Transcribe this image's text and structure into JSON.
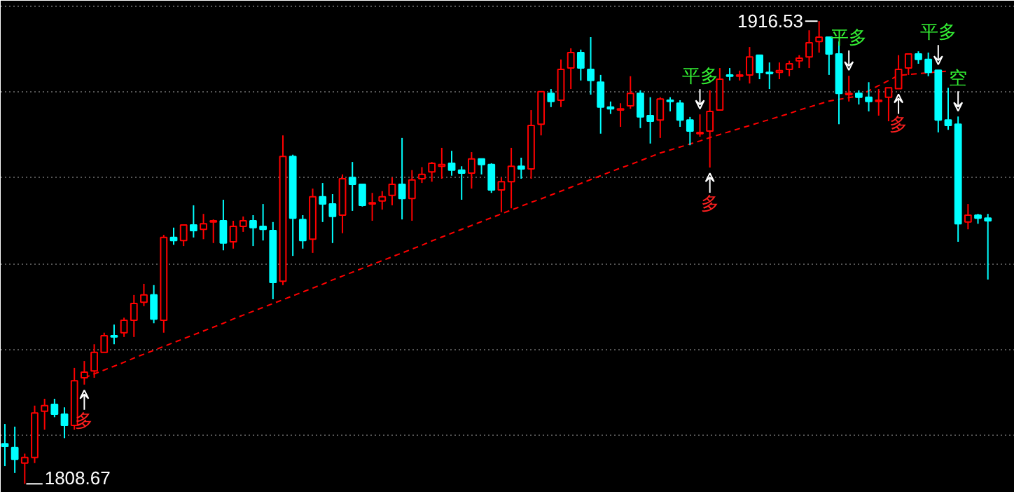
{
  "chart_data": {
    "type": "candlestick",
    "categories": [
      null,
      null,
      null,
      null,
      null,
      null,
      null,
      null,
      null,
      null,
      null,
      null,
      null,
      null,
      null,
      null,
      null,
      null,
      null,
      null,
      null,
      null,
      null,
      null,
      null,
      null,
      null,
      null,
      null,
      null,
      null,
      null,
      null,
      null,
      null,
      null,
      null,
      null,
      null,
      null,
      null,
      null,
      null,
      null,
      null,
      null,
      null,
      null,
      null,
      null,
      null,
      null,
      null,
      null,
      null,
      null,
      null,
      null,
      null,
      null,
      null,
      null,
      null,
      null,
      null,
      null,
      null,
      null,
      null,
      null,
      null,
      null,
      null,
      null,
      null,
      null,
      null,
      null,
      null,
      null,
      null,
      null,
      null,
      null,
      null,
      null,
      null,
      null,
      null,
      null,
      null,
      null,
      null,
      null,
      null,
      null,
      null,
      null,
      null,
      null
    ],
    "ohlc": [
      [
        1818.0,
        1822.6,
        1812.8,
        1817.4
      ],
      [
        1817.1,
        1822.0,
        1811.2,
        1814.4
      ],
      [
        1813.5,
        1815.7,
        1808.67,
        1814.8
      ],
      [
        1814.8,
        1826.9,
        1813.5,
        1825.2
      ],
      [
        1825.6,
        1828.5,
        1821.3,
        1826.9
      ],
      [
        1827.2,
        1828.5,
        1824.2,
        1824.9
      ],
      [
        1824.9,
        1826.5,
        1819.3,
        1822.3
      ],
      [
        1822.3,
        1835.7,
        1821.3,
        1832.7
      ],
      [
        1833.4,
        1837.3,
        1831.8,
        1834.7
      ],
      [
        1835.0,
        1841.2,
        1833.4,
        1839.3
      ],
      [
        1839.3,
        1843.9,
        1839.3,
        1843.2
      ],
      [
        1843.2,
        1845.8,
        1841.2,
        1842.9
      ],
      [
        1843.9,
        1847.4,
        1842.9,
        1846.8
      ],
      [
        1846.8,
        1852.7,
        1842.9,
        1850.7
      ],
      [
        1851.0,
        1855.3,
        1850.1,
        1852.7
      ],
      [
        1852.7,
        1855.0,
        1846.1,
        1847.1
      ],
      [
        1846.8,
        1866.7,
        1843.9,
        1866.1
      ],
      [
        1866.1,
        1868.4,
        1864.4,
        1865.4
      ],
      [
        1865.4,
        1869.0,
        1864.1,
        1869.0
      ],
      [
        1869.0,
        1873.6,
        1866.1,
        1867.7
      ],
      [
        1868.0,
        1871.6,
        1865.7,
        1869.3
      ],
      [
        1869.7,
        1870.3,
        1864.8,
        1870.0
      ],
      [
        1870.0,
        1874.9,
        1863.1,
        1864.8
      ],
      [
        1865.1,
        1870.0,
        1863.5,
        1868.7
      ],
      [
        1868.7,
        1871.0,
        1867.4,
        1870.0
      ],
      [
        1870.0,
        1871.3,
        1864.1,
        1868.4
      ],
      [
        1868.7,
        1873.9,
        1865.4,
        1868.0
      ],
      [
        1867.7,
        1869.7,
        1851.7,
        1855.6
      ],
      [
        1855.9,
        1889.9,
        1855.0,
        1885.0
      ],
      [
        1885.0,
        1885.4,
        1861.8,
        1870.6
      ],
      [
        1870.3,
        1871.3,
        1863.5,
        1865.4
      ],
      [
        1865.7,
        1877.5,
        1862.5,
        1875.6
      ],
      [
        1875.6,
        1878.8,
        1869.7,
        1873.9
      ],
      [
        1873.9,
        1876.2,
        1864.8,
        1871.0
      ],
      [
        1871.3,
        1880.8,
        1867.1,
        1879.8
      ],
      [
        1880.1,
        1883.7,
        1872.3,
        1878.5
      ],
      [
        1878.5,
        1878.5,
        1873.3,
        1873.6
      ],
      [
        1873.9,
        1876.5,
        1870.0,
        1874.2
      ],
      [
        1874.6,
        1876.9,
        1872.6,
        1875.6
      ],
      [
        1875.9,
        1880.1,
        1873.6,
        1878.5
      ],
      [
        1878.5,
        1889.3,
        1870.3,
        1875.2
      ],
      [
        1875.2,
        1881.8,
        1870.0,
        1879.5
      ],
      [
        1879.8,
        1882.5,
        1878.8,
        1880.8
      ],
      [
        1881.4,
        1883.7,
        1879.1,
        1883.4
      ],
      [
        1882.7,
        1887.0,
        1879.8,
        1883.1
      ],
      [
        1883.4,
        1886.3,
        1880.5,
        1881.8
      ],
      [
        1881.8,
        1882.7,
        1874.9,
        1881.1
      ],
      [
        1881.1,
        1886.0,
        1877.5,
        1884.4
      ],
      [
        1884.4,
        1884.4,
        1880.8,
        1883.1
      ],
      [
        1883.1,
        1883.4,
        1876.5,
        1877.2
      ],
      [
        1877.2,
        1880.1,
        1872.0,
        1879.1
      ],
      [
        1879.1,
        1887.0,
        1872.9,
        1882.7
      ],
      [
        1882.7,
        1884.7,
        1879.8,
        1882.1
      ],
      [
        1882.1,
        1895.8,
        1879.8,
        1892.2
      ],
      [
        1892.5,
        1900.1,
        1889.9,
        1900.1
      ],
      [
        1899.7,
        1900.7,
        1896.5,
        1897.8
      ],
      [
        1898.1,
        1907.6,
        1896.5,
        1905.3
      ],
      [
        1905.6,
        1910.2,
        1900.7,
        1909.2
      ],
      [
        1909.2,
        1909.9,
        1902.7,
        1905.6
      ],
      [
        1905.3,
        1912.8,
        1899.4,
        1902.7
      ],
      [
        1902.3,
        1904.0,
        1890.3,
        1896.5
      ],
      [
        1896.5,
        1897.8,
        1894.9,
        1896.1
      ],
      [
        1895.8,
        1897.4,
        1891.9,
        1896.1
      ],
      [
        1896.8,
        1903.7,
        1896.1,
        1899.7
      ],
      [
        1899.7,
        1900.4,
        1891.6,
        1894.2
      ],
      [
        1894.5,
        1898.8,
        1888.0,
        1893.2
      ],
      [
        1893.5,
        1898.8,
        1889.3,
        1898.4
      ],
      [
        1898.1,
        1898.8,
        1895.5,
        1897.8
      ],
      [
        1897.4,
        1898.1,
        1891.9,
        1893.5
      ],
      [
        1893.5,
        1894.2,
        1887.6,
        1890.9
      ],
      [
        1890.3,
        1894.8,
        1889.6,
        1890.6
      ],
      [
        1890.9,
        1900.4,
        1882.4,
        1895.5
      ],
      [
        1895.8,
        1905.6,
        1895.8,
        1903.0
      ],
      [
        1904.0,
        1905.6,
        1902.7,
        1903.7
      ],
      [
        1903.7,
        1905.0,
        1902.7,
        1904.0
      ],
      [
        1904.0,
        1910.5,
        1902.0,
        1908.2
      ],
      [
        1908.6,
        1908.6,
        1903.0,
        1904.6
      ],
      [
        1904.6,
        1906.9,
        1900.7,
        1904.3
      ],
      [
        1904.6,
        1906.9,
        1903.0,
        1905.0
      ],
      [
        1905.3,
        1907.3,
        1903.7,
        1906.6
      ],
      [
        1907.3,
        1908.6,
        1905.6,
        1907.9
      ],
      [
        1908.2,
        1914.4,
        1905.6,
        1911.5
      ],
      [
        1911.8,
        1916.53,
        1909.2,
        1912.8
      ],
      [
        1912.8,
        1912.8,
        1904.0,
        1908.9
      ],
      [
        1908.9,
        1911.8,
        1892.5,
        1899.7
      ],
      [
        1899.4,
        1903.8,
        1897.8,
        1899.7
      ],
      [
        1899.7,
        1900.4,
        1897.1,
        1898.8
      ],
      [
        1898.8,
        1902.3,
        1895.5,
        1897.8
      ],
      [
        1897.8,
        1900.7,
        1894.5,
        1898.1
      ],
      [
        1898.8,
        1901.0,
        1893.2,
        1901.0
      ],
      [
        1900.8,
        1908.6,
        1900.8,
        1905.3
      ],
      [
        1905.6,
        1908.9,
        1904.0,
        1908.9
      ],
      [
        1908.9,
        1909.5,
        1906.6,
        1907.6
      ],
      [
        1907.6,
        1909.2,
        1903.7,
        1904.6
      ],
      [
        1905.1,
        1905.1,
        1890.6,
        1893.5
      ],
      [
        1893.5,
        1901.0,
        1891.2,
        1892.2
      ],
      [
        1892.5,
        1894.3,
        1865.1,
        1869.3
      ],
      [
        1869.7,
        1873.9,
        1868.0,
        1871.3
      ],
      [
        1871.3,
        1871.6,
        1869.3,
        1870.6
      ],
      [
        1870.6,
        1871.6,
        1856.3,
        1870.0
      ]
    ],
    "colors": [
      "#00ffff",
      "#00ffff",
      "#ff0000",
      "#ff0000",
      "#ff0000",
      "#00ffff",
      "#00ffff",
      "#ff0000",
      "#ff0000",
      "#ff0000",
      "#ff0000",
      "#00ffff",
      "#ff0000",
      "#ff0000",
      "#ff0000",
      "#00ffff",
      "#ff0000",
      "#00ffff",
      "#ff0000",
      "#00ffff",
      "#ff0000",
      "#ff0000",
      "#00ffff",
      "#ff0000",
      "#ff0000",
      "#00ffff",
      "#00ffff",
      "#00ffff",
      "#ff0000",
      "#00ffff",
      "#00ffff",
      "#ff0000",
      "#00ffff",
      "#00ffff",
      "#ff0000",
      "#00ffff",
      "#00ffff",
      "#ff0000",
      "#ff0000",
      "#ff0000",
      "#00ffff",
      "#ff0000",
      "#ff0000",
      "#ff0000",
      "#ff0000",
      "#00ffff",
      "#00ffff",
      "#ff0000",
      "#00ffff",
      "#00ffff",
      "#ff0000",
      "#ff0000",
      "#00ffff",
      "#ff0000",
      "#ff0000",
      "#00ffff",
      "#ff0000",
      "#ff0000",
      "#00ffff",
      "#00ffff",
      "#00ffff",
      "#00ffff",
      "#ff0000",
      "#ff0000",
      "#00ffff",
      "#00ffff",
      "#ff0000",
      "#00ffff",
      "#00ffff",
      "#00ffff",
      "#ff0000",
      "#ff0000",
      "#ff0000",
      "#00ffff",
      "#ff0000",
      "#ff0000",
      "#00ffff",
      "#00ffff",
      "#ff0000",
      "#ff0000",
      "#ff0000",
      "#ff0000",
      "#ff0000",
      "#00ffff",
      "#00ffff",
      "#ff0000",
      "#00ffff",
      "#00ffff",
      "#ff0000",
      "#ff0000",
      "#ff0000",
      "#ff0000",
      "#00ffff",
      "#00ffff",
      "#00ffff",
      "#00ffff",
      "#00ffff",
      "#ff0000",
      "#00ffff",
      "#00ffff"
    ],
    "series": [
      {
        "type": "line",
        "color": "#ff0000",
        "line_style": "dashed",
        "values": [
          null,
          null,
          null,
          null,
          null,
          null,
          null,
          null,
          1833.4,
          1834.3,
          1835.2,
          1836.1,
          1837.0,
          1838.0,
          1838.9,
          1839.8,
          1840.7,
          1841.6,
          1842.5,
          1843.4,
          1844.3,
          1845.2,
          1846.1,
          1847.1,
          1848.0,
          1848.9,
          1849.8,
          1850.7,
          1851.6,
          1852.5,
          1853.4,
          1854.3,
          1855.2,
          1856.2,
          1857.1,
          1858.0,
          1858.9,
          1859.8,
          1860.7,
          1861.6,
          1862.5,
          1863.4,
          1864.3,
          1865.3,
          1866.2,
          1867.1,
          1868.0,
          1868.9,
          1869.8,
          1870.7,
          1871.6,
          1872.5,
          1873.4,
          1874.3,
          1875.1,
          1876.0,
          1876.9,
          1877.8,
          1878.7,
          1879.6,
          1880.5,
          1881.4,
          1882.3,
          1883.1,
          1884.0,
          1884.9,
          1885.8,
          1886.5,
          1887.2,
          1887.9,
          1888.6,
          1889.4,
          1890.1,
          1890.8,
          1891.5,
          1892.2,
          1892.9,
          1893.6,
          1894.3,
          1895.0,
          1895.8,
          1896.5,
          1897.2,
          1897.9,
          1898.3,
          1898.7,
          1899.1,
          1900.3,
          1901.5,
          1902.7,
          1903.9,
          1904.1,
          1904.3,
          1904.5,
          1904.7,
          1904.9,
          null,
          null,
          null,
          null
        ]
      }
    ],
    "ylim": [
      1806.6,
      1921.3
    ],
    "yticks": [
      {
        "value": 1820,
        "label": null
      },
      {
        "value": 1840,
        "label": null
      },
      {
        "value": 1860,
        "label": null
      },
      {
        "value": 1880,
        "label": null
      },
      {
        "value": 1900,
        "label": null
      },
      {
        "value": 1920,
        "label": null
      }
    ],
    "grid": "y",
    "tick_labels": false,
    "annotations": [
      "1916.53",
      "1808.67",
      {
        "text": "多",
        "y": 1831.8
      },
      {
        "text": "平多",
        "y": 1894.8
      },
      {
        "text": "多",
        "y": 1882.4
      },
      {
        "text": "平多",
        "y": 1903.8
      },
      {
        "text": "多",
        "y": 1900.8
      },
      {
        "text": "平多",
        "y": 1905.1
      },
      {
        "text": "空",
        "y": 1894.3
      }
    ]
  }
}
